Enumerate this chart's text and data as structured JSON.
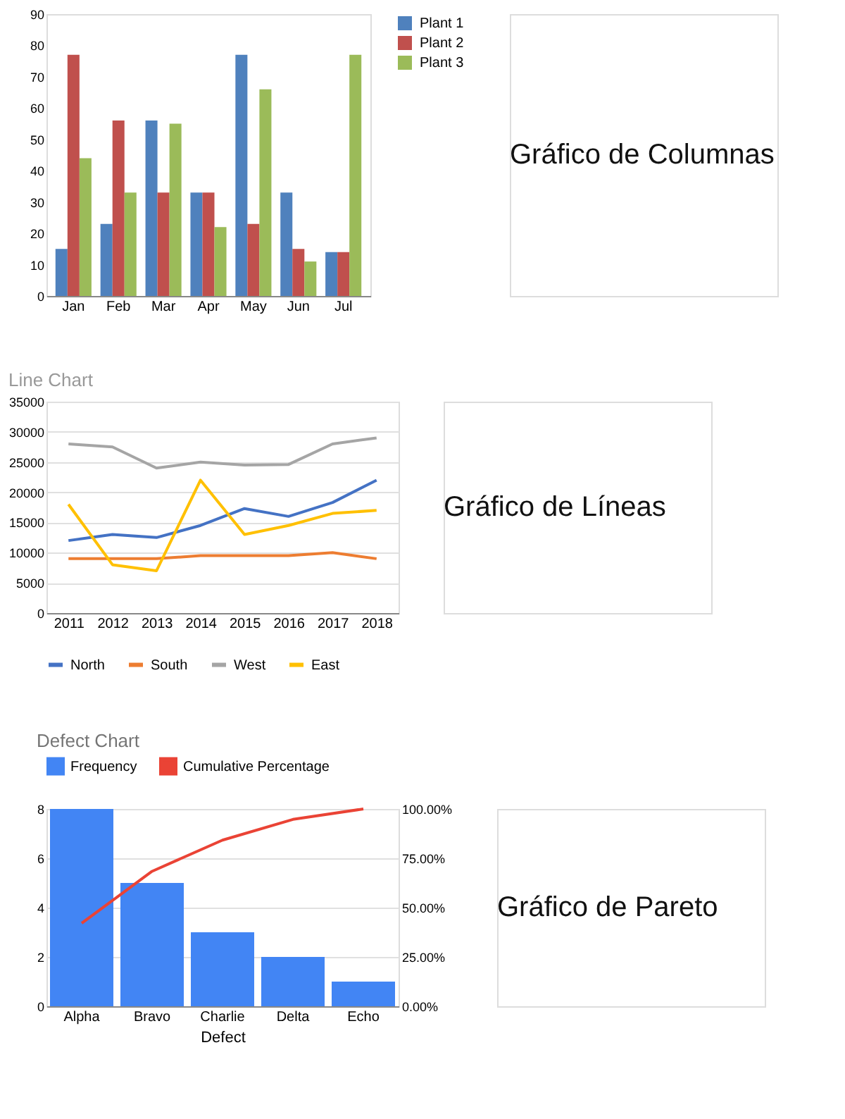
{
  "chart_data": [
    {
      "type": "bar",
      "categories": [
        "Jan",
        "Feb",
        "Mar",
        "Apr",
        "May",
        "Jun",
        "Jul"
      ],
      "ylim": [
        0,
        90
      ],
      "yticks": [
        0,
        10,
        20,
        30,
        40,
        50,
        60,
        70,
        80,
        90
      ],
      "grid": false,
      "legend": "right",
      "annotations": [
        "Gráfico de Columnas"
      ],
      "series": [
        {
          "name": "Plant 1",
          "color": "#4f81bd",
          "values": [
            15,
            23,
            56,
            33,
            77,
            33,
            14
          ]
        },
        {
          "name": "Plant 2",
          "color": "#c0504d",
          "values": [
            77,
            56,
            33,
            33,
            23,
            15,
            14
          ]
        },
        {
          "name": "Plant 3",
          "color": "#9bbb59",
          "values": [
            44,
            33,
            55,
            22,
            66,
            11,
            77
          ]
        }
      ]
    },
    {
      "type": "line",
      "title": "Line Chart",
      "categories": [
        "2011",
        "2012",
        "2013",
        "2014",
        "2015",
        "2016",
        "2017",
        "2018"
      ],
      "ylim": [
        0,
        35000
      ],
      "yticks": [
        0,
        5000,
        10000,
        15000,
        20000,
        25000,
        30000,
        35000
      ],
      "grid": "y",
      "legend": "bottom",
      "marker": "none",
      "line_style": "solid",
      "annotations": [
        "Gráfico de Líneas"
      ],
      "series": [
        {
          "name": "North",
          "color": "#4472c4",
          "values": [
            12000,
            13000,
            12500,
            14500,
            17300,
            16000,
            18300,
            22000
          ]
        },
        {
          "name": "South",
          "color": "#ed7d31",
          "values": [
            9000,
            9000,
            9000,
            9500,
            9500,
            9500,
            10000,
            9000
          ]
        },
        {
          "name": "West",
          "color": "#a5a5a5",
          "values": [
            28000,
            27500,
            24000,
            25000,
            24500,
            24600,
            28000,
            29000
          ]
        },
        {
          "name": "East",
          "color": "#ffc000",
          "values": [
            18000,
            8000,
            7000,
            22000,
            13000,
            14500,
            16500,
            17000
          ]
        }
      ]
    },
    {
      "type": "bar",
      "title": "Defect Chart",
      "xlabel": "Defect",
      "categories": [
        "Alpha",
        "Bravo",
        "Charlie",
        "Delta",
        "Echo"
      ],
      "ylim": [
        0,
        8
      ],
      "yticks": [
        0,
        2,
        4,
        6,
        8
      ],
      "y2lim": [
        0,
        100
      ],
      "y2ticks": [
        {
          "value": 0,
          "label": "0.00%"
        },
        {
          "value": 25,
          "label": "25.00%"
        },
        {
          "value": 50,
          "label": "50.00%"
        },
        {
          "value": 75,
          "label": "75.00%"
        },
        {
          "value": 100,
          "label": "100.00%"
        }
      ],
      "grid": "y",
      "legend": "top",
      "annotations": [
        "Gráfico de Pareto"
      ],
      "series": [
        {
          "name": "Frequency",
          "color": "#4285f4",
          "values": [
            8,
            5,
            3,
            2,
            1
          ]
        },
        {
          "name": "Cumulative Percentage",
          "type": "line",
          "axis": "y2",
          "color": "#ea4335",
          "values": [
            42.1,
            68.4,
            84.2,
            94.7,
            100
          ]
        }
      ]
    }
  ]
}
